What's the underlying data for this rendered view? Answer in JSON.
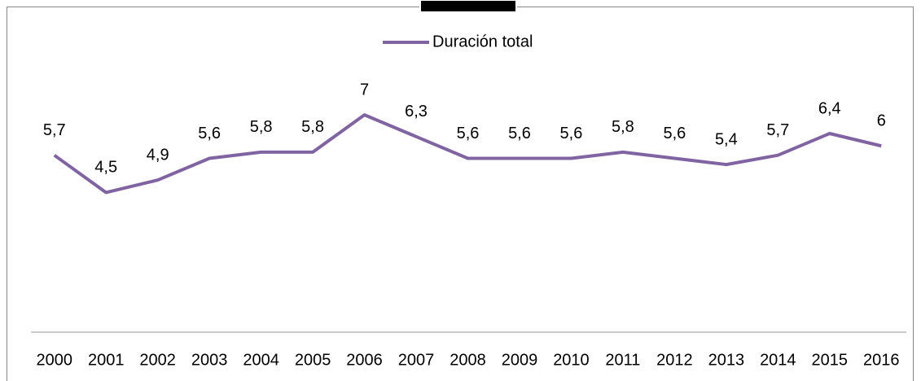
{
  "chart_data": {
    "type": "line",
    "categories": [
      "2000",
      "2001",
      "2002",
      "2003",
      "2004",
      "2005",
      "2006",
      "2007",
      "2008",
      "2009",
      "2010",
      "2011",
      "2012",
      "2013",
      "2014",
      "2015",
      "2016"
    ],
    "series": [
      {
        "name": "Duración total",
        "color": "#8064a2",
        "values": [
          5.7,
          4.5,
          4.9,
          5.6,
          5.8,
          5.8,
          7,
          6.3,
          5.6,
          5.6,
          5.6,
          5.8,
          5.6,
          5.4,
          5.7,
          6.4,
          6
        ],
        "value_labels": [
          "5,7",
          "4,5",
          "4,9",
          "5,6",
          "5,8",
          "5,8",
          "7",
          "6,3",
          "5,6",
          "5,6",
          "5,6",
          "5,8",
          "5,6",
          "5,4",
          "5,7",
          "6,4",
          "6"
        ]
      }
    ],
    "ylim": [
      0,
      8
    ],
    "legend": "top"
  }
}
